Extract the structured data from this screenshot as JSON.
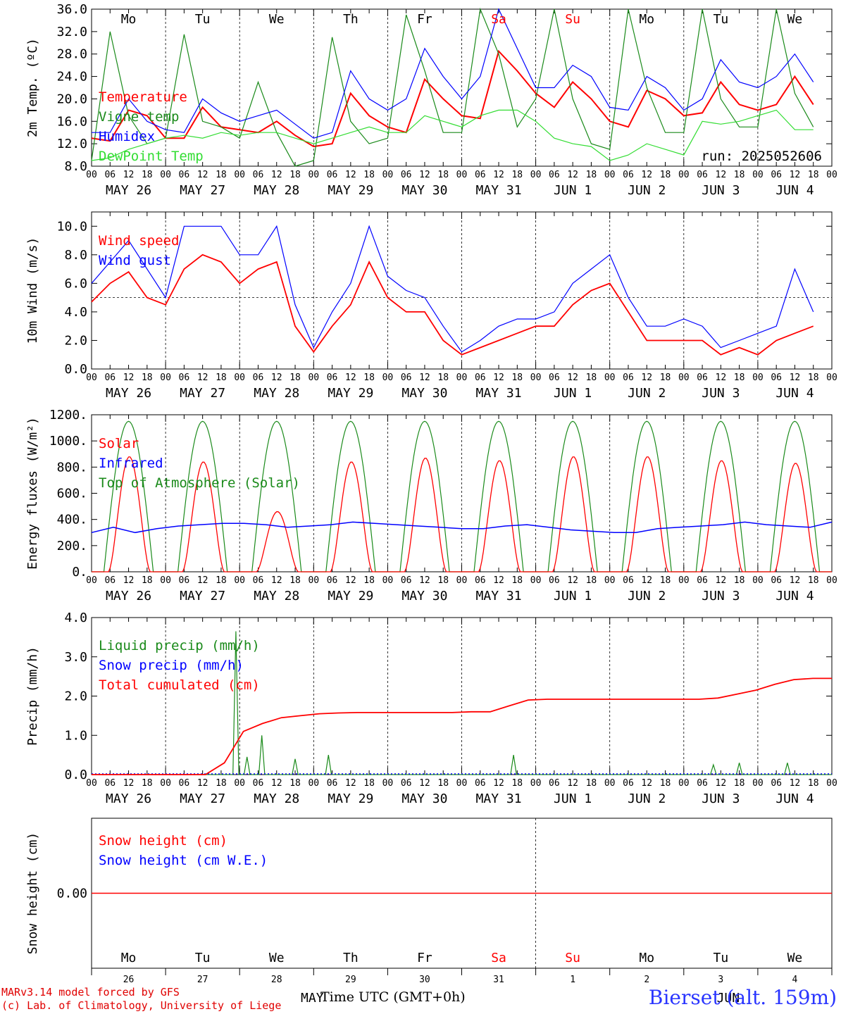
{
  "run_label": "run: 2025052606",
  "footer": {
    "line1": "MARv3.14 model forced by GFS",
    "line2": "(c) Lab. of Climatology, University of Liege",
    "xaxis_title": "Time UTC (GMT+0h)",
    "month_left": "MAY",
    "month_right": "JUN",
    "station": "Bierset (alt. 159m)"
  },
  "weekdays": [
    "Mo",
    "Tu",
    "We",
    "Th",
    "Fr",
    "Sa",
    "Su",
    "Mo",
    "Tu",
    "We"
  ],
  "weekend_color": "#ff0000",
  "date_labels": [
    "MAY 26",
    "MAY 27",
    "MAY 28",
    "MAY 29",
    "MAY 30",
    "MAY 31",
    "JUN  1",
    "JUN  2",
    "JUN  3",
    "JUN  4"
  ],
  "day_numbers": [
    "26",
    "27",
    "28",
    "29",
    "30",
    "31",
    "1",
    "2",
    "3",
    "4"
  ],
  "hour_ticks": [
    "00",
    "06",
    "12",
    "18"
  ],
  "chart_data": [
    {
      "type": "line",
      "ylabel": "2m Temp. (ºC)",
      "ylim": [
        8,
        36
      ],
      "yticks": [
        "8.0",
        "12.0",
        "16.0",
        "20.0",
        "24.0",
        "28.0",
        "32.0",
        "36.0"
      ],
      "x": "hours since 2025-05-26 00 UTC (6-hourly)",
      "series": [
        {
          "name": "Temperature",
          "color": "#ff0000",
          "values": [
            13,
            12.5,
            18,
            17,
            13,
            13,
            18.5,
            15,
            14.5,
            14,
            16,
            13.5,
            11.5,
            12,
            21,
            17,
            15,
            14,
            23.5,
            20,
            17,
            16.5,
            28.5,
            25,
            21,
            18.5,
            23,
            20,
            16,
            15,
            21.5,
            20,
            17,
            17.5,
            23,
            19,
            18,
            19,
            24,
            19
          ]
        },
        {
          "name": "Vigne temp",
          "color": "#1a8a1a",
          "values": [
            9,
            32,
            17,
            12,
            13,
            31.5,
            16,
            15,
            13,
            23,
            14,
            8,
            9,
            31,
            16,
            12,
            13,
            35,
            25,
            14,
            14,
            36,
            28,
            15,
            20,
            36,
            20,
            12,
            11,
            36,
            22,
            14,
            14,
            36,
            20,
            15,
            15,
            36,
            21,
            15
          ]
        },
        {
          "name": "Humidex",
          "color": "#0000ff",
          "values": [
            14,
            14,
            20,
            16,
            14.5,
            14,
            20,
            17.5,
            16,
            17,
            18,
            15.5,
            13,
            14,
            25,
            20,
            18,
            20,
            29,
            24,
            20,
            24,
            36,
            29,
            22,
            22,
            26,
            24,
            18.5,
            18,
            24,
            22,
            18,
            20,
            27,
            23,
            22,
            24,
            28,
            23
          ]
        },
        {
          "name": "DewPoint Temp",
          "color": "#33dd33",
          "values": [
            9,
            9.5,
            11,
            12,
            13,
            13.5,
            13,
            14,
            13.5,
            14,
            14,
            13,
            12,
            13,
            14,
            15,
            14,
            14,
            17,
            16,
            15,
            17,
            18,
            18,
            16,
            13,
            12,
            11.5,
            9,
            10,
            12,
            11,
            10,
            16,
            15.5,
            16,
            17,
            18,
            14.5,
            14.5
          ]
        }
      ]
    },
    {
      "type": "line",
      "ylabel": "10m Wind (m/s)",
      "ylim": [
        0,
        11
      ],
      "yticks": [
        "0.0",
        "2.0",
        "4.0",
        "6.0",
        "8.0",
        "10.0"
      ],
      "reference_line": 5,
      "series": [
        {
          "name": "Wind speed",
          "color": "#ff0000",
          "values": [
            4.7,
            6,
            6.8,
            5,
            4.5,
            7,
            8,
            7.5,
            6,
            7,
            7.5,
            3,
            1.2,
            3,
            4.5,
            7.5,
            5,
            4,
            4,
            2,
            1,
            1.5,
            2,
            2.5,
            3,
            3,
            4.5,
            5.5,
            6,
            4,
            2,
            2,
            2,
            2,
            1,
            1.5,
            1,
            2,
            2.5,
            3
          ]
        },
        {
          "name": "Wind gust",
          "color": "#0000ff",
          "values": [
            6,
            7.5,
            9,
            7,
            5,
            10,
            10,
            10,
            8,
            8,
            10,
            4.5,
            1.5,
            4,
            6,
            10,
            6.5,
            5.5,
            5,
            3,
            1.2,
            2,
            3,
            3.5,
            3.5,
            4,
            6,
            7,
            8,
            5,
            3,
            3,
            3.5,
            3,
            1.5,
            2,
            2.5,
            3,
            7,
            4
          ]
        }
      ]
    },
    {
      "type": "line",
      "ylabel": "Energy fluxes (W/m²)",
      "ylim": [
        0,
        1200
      ],
      "yticks": [
        "0.",
        "200.",
        "400.",
        "600.",
        "800.",
        "1000.",
        "1200."
      ],
      "series": [
        {
          "name": "Solar",
          "color": "#ff0000",
          "peaks_per_day": [
            880,
            840,
            460,
            840,
            870,
            850,
            880,
            880,
            850,
            830
          ]
        },
        {
          "name": "Infrared",
          "color": "#0000ff",
          "values": [
            300,
            340,
            300,
            330,
            350,
            360,
            370,
            370,
            360,
            340,
            350,
            360,
            380,
            370,
            360,
            350,
            340,
            330,
            330,
            350,
            360,
            340,
            320,
            310,
            300,
            300,
            330,
            340,
            350,
            360,
            380,
            360,
            350,
            340,
            380
          ]
        },
        {
          "name": "Top of Atmosphere (Solar)",
          "color": "#1a8a1a",
          "daily_peak": 1150
        }
      ]
    },
    {
      "type": "line",
      "ylabel": "Precip (mm/h)",
      "ylim": [
        0,
        4
      ],
      "yticks": [
        "0.0",
        "1.0",
        "2.0",
        "3.0",
        "4.0"
      ],
      "series": [
        {
          "name": "Liquid precip (mm/h)",
          "color": "#1a8a1a",
          "events": [
            {
              "day": 1.95,
              "value": 3.65
            },
            {
              "day": 2.1,
              "value": 0.45
            },
            {
              "day": 2.3,
              "value": 1.0
            },
            {
              "day": 2.75,
              "value": 0.4
            },
            {
              "day": 3.2,
              "value": 0.5
            },
            {
              "day": 5.7,
              "value": 0.5
            },
            {
              "day": 8.4,
              "value": 0.25
            },
            {
              "day": 8.75,
              "value": 0.3
            },
            {
              "day": 9.4,
              "value": 0.3
            }
          ]
        },
        {
          "name": "Snow precip (mm/h)",
          "color": "#0000ff",
          "values": [
            0
          ]
        },
        {
          "name": "Total cumulated (cm)",
          "color": "#ff0000",
          "values": [
            0,
            0,
            0,
            0,
            0,
            0,
            0,
            0.3,
            1.1,
            1.3,
            1.45,
            1.5,
            1.55,
            1.57,
            1.58,
            1.58,
            1.58,
            1.58,
            1.58,
            1.58,
            1.6,
            1.6,
            1.75,
            1.9,
            1.92,
            1.92,
            1.92,
            1.92,
            1.92,
            1.92,
            1.92,
            1.92,
            1.92,
            1.95,
            2.05,
            2.15,
            2.3,
            2.42,
            2.45,
            2.45
          ]
        }
      ]
    },
    {
      "type": "line",
      "ylabel": "Snow height (cm)",
      "yticks": [
        "0.00"
      ],
      "series": [
        {
          "name": "Snow height (cm)",
          "color": "#ff0000",
          "values": [
            0,
            0
          ]
        },
        {
          "name": "Snow height (cm W.E.)",
          "color": "#0000ff",
          "values": [
            0,
            0
          ]
        }
      ]
    }
  ]
}
